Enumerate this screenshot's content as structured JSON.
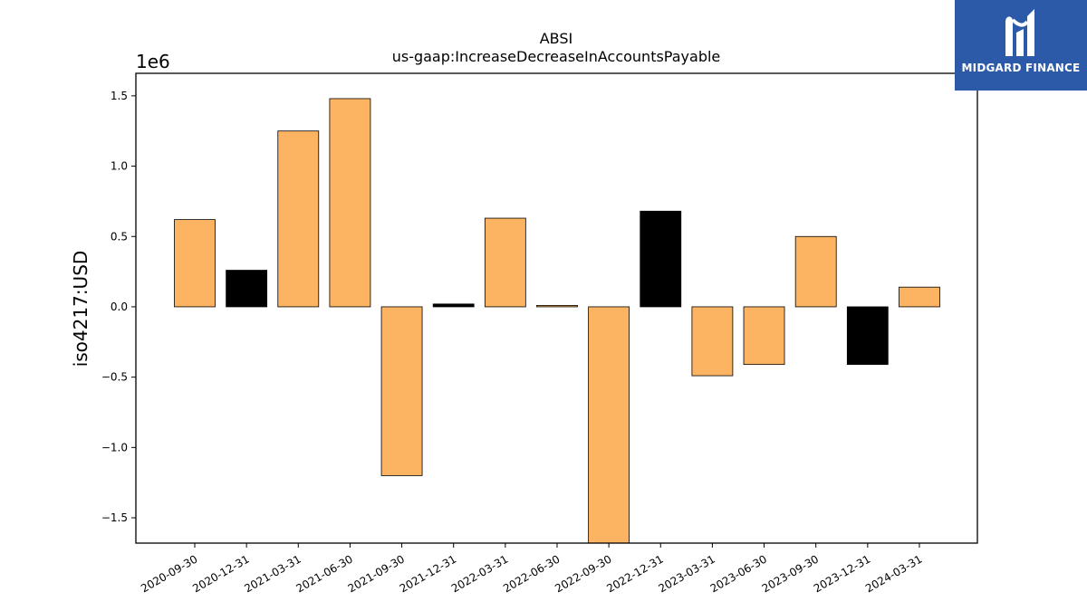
{
  "brand": {
    "name": "MIDGARD FINANCE",
    "logo_icon": "midgard-m-logo-icon",
    "background": "#2d5aa8",
    "foreground": "#ffffff"
  },
  "chart_data": {
    "type": "bar",
    "title": "ABSI",
    "subtitle": "us-gaap:IncreaseDecreaseInAccountsPayable",
    "xlabel": "",
    "ylabel": "iso4217:USD",
    "y_scale_label": "1e6",
    "ylim": [
      -1.68,
      1.66
    ],
    "yticks": [
      -1.5,
      -1.0,
      -0.5,
      0.0,
      0.5,
      1.0,
      1.5
    ],
    "ytick_labels": [
      "−1.5",
      "−1.0",
      "−0.5",
      "0.0",
      "0.5",
      "1.0",
      "1.5"
    ],
    "grid": false,
    "legend": "none",
    "categories": [
      "2020-09-30",
      "2020-12-31",
      "2021-03-31",
      "2021-06-30",
      "2021-09-30",
      "2021-12-31",
      "2022-03-31",
      "2022-06-30",
      "2022-09-30",
      "2022-12-31",
      "2023-03-31",
      "2023-06-30",
      "2023-09-30",
      "2023-12-31",
      "2024-03-31"
    ],
    "values": [
      0.62,
      0.26,
      1.25,
      1.48,
      -1.2,
      0.02,
      0.63,
      0.01,
      -1.75,
      0.68,
      -0.49,
      -0.41,
      0.5,
      -0.41,
      0.14
    ],
    "colors": [
      "#fdb462",
      "#000000",
      "#fdb462",
      "#fdb462",
      "#fdb462",
      "#000000",
      "#fdb462",
      "#fdb462",
      "#fdb462",
      "#000000",
      "#fdb462",
      "#fdb462",
      "#fdb462",
      "#000000",
      "#fdb462"
    ]
  }
}
